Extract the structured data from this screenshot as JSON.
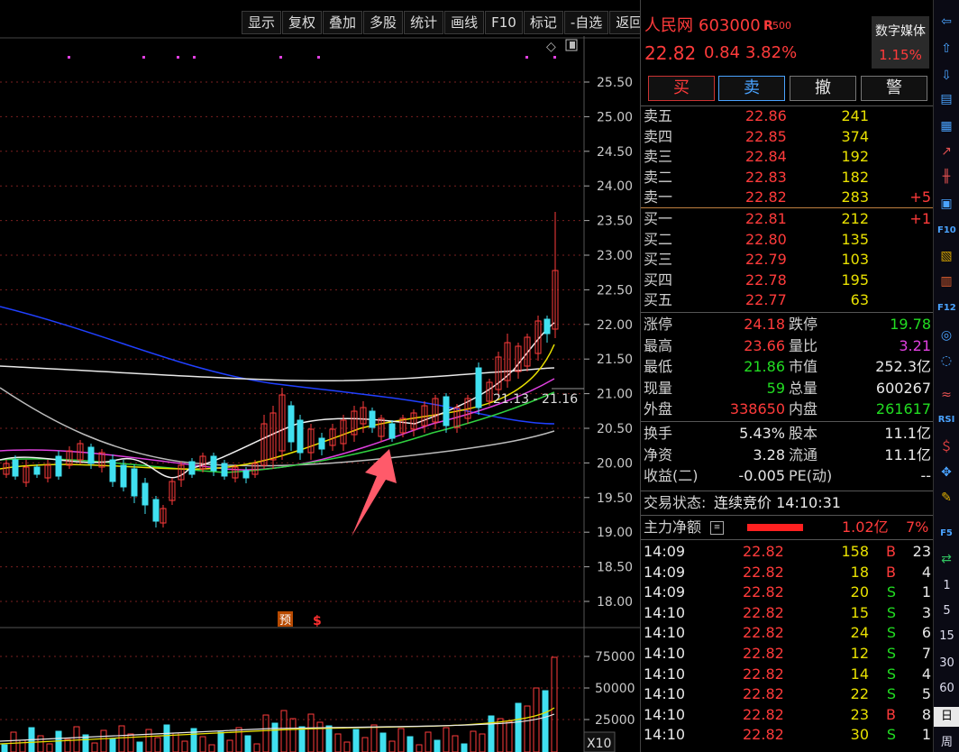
{
  "toolbar": {
    "items": [
      "显示",
      "复权",
      "叠加",
      "多股",
      "统计",
      "画线",
      "F10",
      "标记",
      "-自选",
      "返回"
    ]
  },
  "price_axis": [
    "25.50",
    "25.00",
    "24.50",
    "24.00",
    "23.50",
    "23.00",
    "22.50",
    "22.00",
    "21.50",
    "21.00",
    "20.50",
    "20.00",
    "19.50",
    "19.00",
    "18.50",
    "18.00"
  ],
  "volume_axis": [
    "75000",
    "50000",
    "25000"
  ],
  "volume_unit": "X10",
  "chart_annotation": "21.13 - 21.16",
  "markers": {
    "forecast": "预",
    "dollar": "$"
  },
  "stock": {
    "name": "人民网",
    "code": "603000",
    "badge": "R",
    "badge_sub": "500",
    "price": "22.82",
    "change": "0.84",
    "pct": "3.82%",
    "sector": "数字媒体",
    "sector_pct": "1.15%"
  },
  "trade_buttons": [
    "买",
    "卖",
    "撤",
    "警"
  ],
  "asks": [
    {
      "label": "卖五",
      "price": "22.86",
      "vol": "241",
      "delta": ""
    },
    {
      "label": "卖四",
      "price": "22.85",
      "vol": "374",
      "delta": ""
    },
    {
      "label": "卖三",
      "price": "22.84",
      "vol": "192",
      "delta": ""
    },
    {
      "label": "卖二",
      "price": "22.83",
      "vol": "182",
      "delta": ""
    },
    {
      "label": "卖一",
      "price": "22.82",
      "vol": "283",
      "delta": "+5"
    }
  ],
  "bids": [
    {
      "label": "买一",
      "price": "22.81",
      "vol": "212",
      "delta": "+1"
    },
    {
      "label": "买二",
      "price": "22.80",
      "vol": "135",
      "delta": ""
    },
    {
      "label": "买三",
      "price": "22.79",
      "vol": "103",
      "delta": ""
    },
    {
      "label": "买四",
      "price": "22.78",
      "vol": "195",
      "delta": ""
    },
    {
      "label": "买五",
      "price": "22.77",
      "vol": "63",
      "delta": ""
    }
  ],
  "stats": [
    {
      "l1": "涨停",
      "v1": "24.18",
      "l2": "跌停",
      "v2": "19.78"
    },
    {
      "l1": "最高",
      "v1": "23.66",
      "l2": "量比",
      "v2": "3.21"
    },
    {
      "l1": "最低",
      "v1": "21.86",
      "l2": "市值",
      "v2": "252.3亿"
    },
    {
      "l1": "现量",
      "v1": "59",
      "l2": "总量",
      "v2": "600267"
    },
    {
      "l1": "外盘",
      "v1": "338650",
      "l2": "内盘",
      "v2": "261617"
    }
  ],
  "stats2": [
    {
      "l1": "换手",
      "v1": "5.43%",
      "l2": "股本",
      "v2": "11.1亿"
    },
    {
      "l1": "净资",
      "v1": "3.28",
      "l2": "流通",
      "v2": "11.1亿"
    },
    {
      "l1": "收益(二)",
      "v1": "-0.005",
      "l2": "PE(动)",
      "v2": "--"
    }
  ],
  "status": {
    "label": "交易状态:",
    "value": "连续竞价 14:10:31"
  },
  "main_flow": {
    "label": "主力净额",
    "value": "1.02亿",
    "pct": "7%"
  },
  "ticks": [
    {
      "time": "14:09",
      "price": "22.82",
      "vol": "158",
      "side": "B",
      "count": "23"
    },
    {
      "time": "14:09",
      "price": "22.82",
      "vol": "18",
      "side": "B",
      "count": "4"
    },
    {
      "time": "14:09",
      "price": "22.82",
      "vol": "20",
      "side": "S",
      "count": "1"
    },
    {
      "time": "14:10",
      "price": "22.82",
      "vol": "15",
      "side": "S",
      "count": "3"
    },
    {
      "time": "14:10",
      "price": "22.82",
      "vol": "24",
      "side": "S",
      "count": "6"
    },
    {
      "time": "14:10",
      "price": "22.82",
      "vol": "12",
      "side": "S",
      "count": "7"
    },
    {
      "time": "14:10",
      "price": "22.82",
      "vol": "14",
      "side": "S",
      "count": "4"
    },
    {
      "time": "14:10",
      "price": "22.82",
      "vol": "22",
      "side": "S",
      "count": "5"
    },
    {
      "time": "14:10",
      "price": "22.82",
      "vol": "23",
      "side": "B",
      "count": "8"
    },
    {
      "time": "14:10",
      "price": "22.82",
      "vol": "30",
      "side": "S",
      "count": "1"
    }
  ],
  "sidebar_periods": [
    "1",
    "5",
    "15",
    "30",
    "60",
    "日",
    "周"
  ],
  "sidebar_labels": {
    "f10": "F10",
    "f12": "F12",
    "rsi": "RSI",
    "f5": "F5"
  }
}
